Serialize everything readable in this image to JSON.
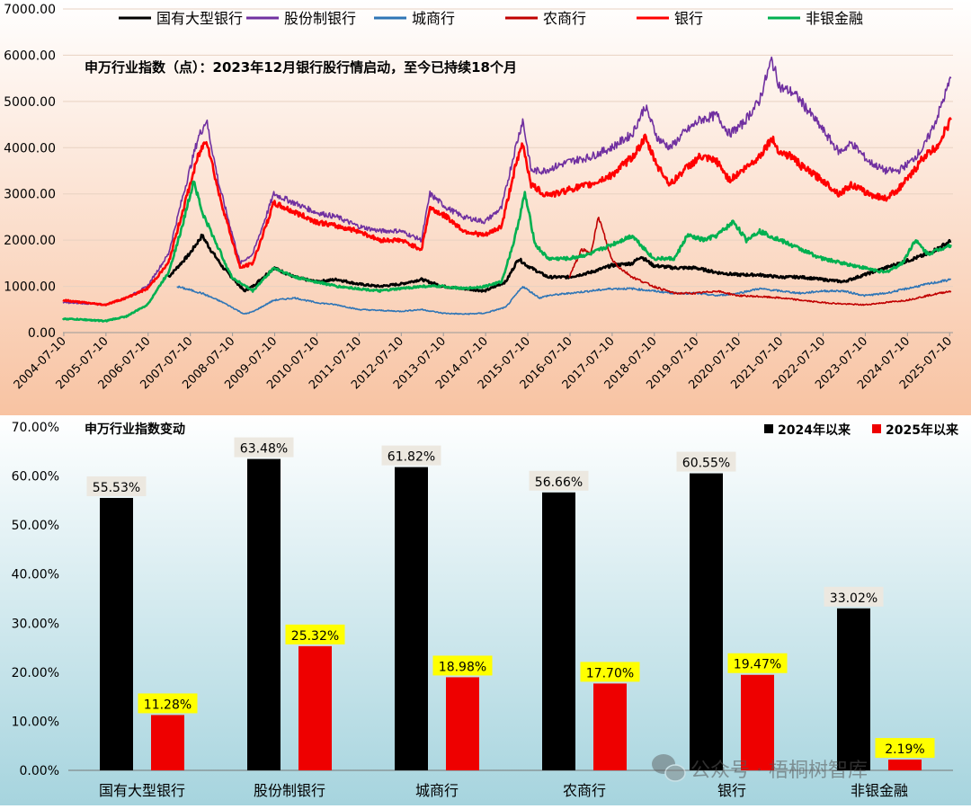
{
  "chart_data": [
    {
      "type": "line",
      "title": "申万行业指数（点）：2023年12月银行股行情启动，至今已持续18个月",
      "ylim": [
        0,
        7000
      ],
      "y_ticks": [
        "7000.00",
        "6000.00",
        "5000.00",
        "4000.00",
        "3000.00",
        "2000.00",
        "1000.00",
        "0.00"
      ],
      "x_ticks": [
        "2004-07-10",
        "2005-07-10",
        "2006-07-10",
        "2007-07-10",
        "2008-07-10",
        "2009-07-10",
        "2010-07-10",
        "2011-07-10",
        "2012-07-10",
        "2013-07-10",
        "2014-07-10",
        "2015-07-10",
        "2016-07-10",
        "2017-07-10",
        "2018-07-10",
        "2019-07-10",
        "2020-07-10",
        "2021-07-10",
        "2022-07-10",
        "2023-07-10",
        "2024-07-10",
        "2025-07-10"
      ],
      "legend_position": "top",
      "series": [
        {
          "name": "国有大型银行",
          "color": "#000000",
          "x": [
            2007.0,
            2007.5,
            2007.8,
            2008.0,
            2008.3,
            2008.8,
            2009.0,
            2009.5,
            2010.0,
            2010.5,
            2011.0,
            2011.5,
            2012.0,
            2012.5,
            2013.0,
            2013.5,
            2014.0,
            2014.5,
            2015.0,
            2015.3,
            2015.5,
            2015.8,
            2016.0,
            2016.5,
            2017.0,
            2017.5,
            2018.0,
            2018.2,
            2018.5,
            2019.0,
            2019.5,
            2020.0,
            2020.5,
            2021.0,
            2021.5,
            2022.0,
            2022.5,
            2023.0,
            2023.5,
            2024.0,
            2024.5,
            2025.0,
            2025.55
          ],
          "y": [
            1200,
            1700,
            2100,
            1800,
            1400,
            900,
            1000,
            1400,
            1200,
            1100,
            1150,
            1050,
            1000,
            1050,
            1150,
            1000,
            950,
            900,
            1100,
            1600,
            1450,
            1300,
            1200,
            1200,
            1300,
            1450,
            1500,
            1650,
            1450,
            1400,
            1400,
            1300,
            1250,
            1250,
            1200,
            1200,
            1150,
            1100,
            1250,
            1400,
            1550,
            1700,
            1980
          ]
        },
        {
          "name": "股份制银行",
          "color": "#7030A0",
          "x": [
            2004.5,
            2005.0,
            2005.5,
            2006.0,
            2006.5,
            2007.0,
            2007.3,
            2007.7,
            2007.9,
            2008.2,
            2008.7,
            2009.0,
            2009.5,
            2010.0,
            2010.5,
            2011.0,
            2011.5,
            2012.0,
            2012.5,
            2013.0,
            2013.2,
            2013.6,
            2014.0,
            2014.5,
            2014.9,
            2015.2,
            2015.4,
            2015.6,
            2015.9,
            2016.2,
            2016.5,
            2017.0,
            2017.5,
            2018.0,
            2018.3,
            2018.6,
            2018.9,
            2019.2,
            2019.6,
            2020.0,
            2020.3,
            2020.6,
            2021.0,
            2021.3,
            2021.5,
            2021.8,
            2022.0,
            2022.5,
            2022.9,
            2023.2,
            2023.6,
            2024.0,
            2024.3,
            2024.6,
            2024.9,
            2025.2,
            2025.55
          ],
          "y": [
            650,
            630,
            600,
            750,
            1000,
            1700,
            2800,
            4200,
            4600,
            3200,
            1500,
            1700,
            3000,
            2800,
            2600,
            2500,
            2300,
            2200,
            2200,
            2000,
            3000,
            2700,
            2500,
            2400,
            2700,
            3900,
            4600,
            3500,
            3500,
            3600,
            3700,
            3800,
            4000,
            4300,
            4900,
            4200,
            4000,
            4300,
            4600,
            4700,
            4300,
            4500,
            5000,
            5900,
            5300,
            5200,
            5000,
            4400,
            3900,
            4100,
            3700,
            3500,
            3500,
            3700,
            4000,
            4600,
            5500
          ]
        },
        {
          "name": "城商行",
          "color": "#2E75B6",
          "x": [
            2007.2,
            2007.8,
            2008.3,
            2008.8,
            2009.0,
            2009.5,
            2010.0,
            2010.5,
            2011.0,
            2011.5,
            2012.0,
            2012.5,
            2013.0,
            2013.5,
            2014.0,
            2014.5,
            2015.0,
            2015.4,
            2015.8,
            2016.0,
            2016.5,
            2017.0,
            2017.5,
            2018.0,
            2018.5,
            2019.0,
            2019.5,
            2020.0,
            2020.5,
            2021.0,
            2021.5,
            2022.0,
            2022.5,
            2023.0,
            2023.5,
            2024.0,
            2024.5,
            2025.0,
            2025.55
          ],
          "y": [
            1000,
            850,
            650,
            400,
            450,
            700,
            750,
            650,
            600,
            500,
            480,
            460,
            500,
            420,
            400,
            420,
            550,
            1000,
            750,
            800,
            850,
            900,
            950,
            950,
            900,
            850,
            850,
            800,
            850,
            950,
            900,
            850,
            900,
            900,
            800,
            850,
            950,
            1050,
            1150
          ]
        },
        {
          "name": "农商行",
          "color": "#C00000",
          "x": [
            2016.5,
            2016.8,
            2017.0,
            2017.2,
            2017.3,
            2017.5,
            2017.7,
            2018.0,
            2018.5,
            2019.0,
            2019.5,
            2020.0,
            2020.5,
            2021.0,
            2021.5,
            2022.0,
            2022.5,
            2023.0,
            2023.5,
            2024.0,
            2024.5,
            2025.0,
            2025.55
          ],
          "y": [
            1200,
            1800,
            1700,
            2500,
            2200,
            1600,
            1400,
            1200,
            1000,
            850,
            850,
            900,
            800,
            780,
            750,
            700,
            650,
            620,
            600,
            650,
            700,
            800,
            900
          ]
        },
        {
          "name": "银行",
          "color": "#FF0000",
          "x": [
            2004.5,
            2005.0,
            2005.5,
            2006.0,
            2006.5,
            2007.0,
            2007.3,
            2007.7,
            2007.9,
            2008.2,
            2008.7,
            2009.0,
            2009.5,
            2010.0,
            2010.5,
            2011.0,
            2011.5,
            2012.0,
            2012.5,
            2013.0,
            2013.2,
            2013.6,
            2014.0,
            2014.5,
            2014.9,
            2015.2,
            2015.4,
            2015.6,
            2015.9,
            2016.2,
            2016.5,
            2017.0,
            2017.5,
            2018.0,
            2018.3,
            2018.6,
            2018.9,
            2019.2,
            2019.6,
            2020.0,
            2020.3,
            2020.6,
            2021.0,
            2021.3,
            2021.5,
            2021.8,
            2022.0,
            2022.5,
            2022.9,
            2023.2,
            2023.6,
            2024.0,
            2024.3,
            2024.6,
            2024.9,
            2025.2,
            2025.55
          ],
          "y": [
            700,
            650,
            600,
            750,
            950,
            1500,
            2500,
            3800,
            4200,
            3000,
            1400,
            1500,
            2800,
            2600,
            2400,
            2300,
            2200,
            2000,
            2000,
            1800,
            2700,
            2500,
            2200,
            2100,
            2300,
            3500,
            4100,
            3200,
            3000,
            3000,
            3100,
            3200,
            3400,
            3800,
            4200,
            3600,
            3200,
            3500,
            3800,
            3700,
            3300,
            3500,
            3800,
            4200,
            3900,
            3800,
            3600,
            3300,
            3000,
            3200,
            3000,
            2900,
            3100,
            3400,
            3800,
            4000,
            4600
          ]
        },
        {
          "name": "非银金融",
          "color": "#00B050",
          "x": [
            2004.5,
            2005.0,
            2005.5,
            2006.0,
            2006.5,
            2007.0,
            2007.3,
            2007.6,
            2007.8,
            2008.0,
            2008.5,
            2009.0,
            2009.5,
            2010.0,
            2010.5,
            2011.0,
            2011.5,
            2012.0,
            2012.5,
            2013.0,
            2013.5,
            2014.0,
            2014.5,
            2014.9,
            2015.2,
            2015.45,
            2015.7,
            2016.0,
            2016.5,
            2017.0,
            2017.5,
            2018.0,
            2018.5,
            2019.0,
            2019.3,
            2019.7,
            2020.0,
            2020.4,
            2020.7,
            2021.0,
            2021.5,
            2022.0,
            2022.5,
            2023.0,
            2023.5,
            2024.0,
            2024.4,
            2024.7,
            2025.0,
            2025.55
          ],
          "y": [
            300,
            280,
            250,
            350,
            600,
            1300,
            2200,
            3300,
            2600,
            2200,
            1200,
            900,
            1400,
            1200,
            1100,
            1000,
            950,
            900,
            950,
            1000,
            1000,
            950,
            1000,
            1100,
            2000,
            3000,
            1900,
            1600,
            1600,
            1700,
            1900,
            2100,
            1600,
            1600,
            2100,
            2000,
            2100,
            2400,
            2000,
            2200,
            2000,
            1800,
            1600,
            1500,
            1400,
            1300,
            1500,
            2000,
            1700,
            1900
          ]
        }
      ]
    },
    {
      "type": "bar",
      "title": "申万行业指数变动",
      "ylim": [
        0,
        70
      ],
      "y_ticks": [
        "70.00%",
        "60.00%",
        "50.00%",
        "40.00%",
        "30.00%",
        "20.00%",
        "10.00%",
        "0.00%"
      ],
      "categories": [
        "国有大型银行",
        "股份制银行",
        "城商行",
        "农商行",
        "银行",
        "非银金融"
      ],
      "legend_position": "top-right",
      "series": [
        {
          "name": "2024年以来",
          "color": "#000000",
          "values": [
            55.53,
            63.48,
            61.82,
            56.66,
            60.55,
            33.02
          ],
          "labels": [
            "55.53%",
            "63.48%",
            "61.82%",
            "56.66%",
            "60.55%",
            "33.02%"
          ]
        },
        {
          "name": "2025年以来",
          "color": "#EE0000",
          "values": [
            11.28,
            25.32,
            18.98,
            17.7,
            19.47,
            2.19
          ],
          "labels": [
            "11.28%",
            "25.32%",
            "18.98%",
            "17.70%",
            "19.47%",
            "2.19%"
          ]
        }
      ]
    }
  ],
  "watermark": "公众号 · 梧桐树智库"
}
